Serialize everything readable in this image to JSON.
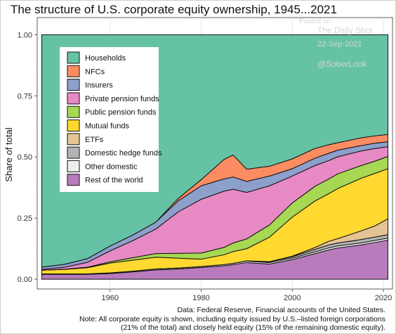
{
  "title": "The structure of U.S. corporate equity ownership, 1945...2021",
  "watermark": {
    "line1": "Posted on",
    "line2": "The Daily Shot",
    "line3": "22-Sep-2021",
    "line4": "@SoberLook"
  },
  "footer": {
    "line1": "Data: Federal Reserve, Financial accounts of the United States.",
    "line2": "Note: All corporate equity is shown, including equity issued by U.S.–listed foreign corporations",
    "line3": "(21% of the total) and closely held equity (15% of the remaining domestic equity)."
  },
  "chart_data": {
    "type": "area",
    "stacked": true,
    "title": "The structure of U.S. corporate equity ownership, 1945...2021",
    "xlabel": "",
    "ylabel": "Share of total",
    "xlim": [
      1945,
      2021
    ],
    "ylim": [
      0,
      1
    ],
    "x_ticks": [
      1960,
      1980,
      2000,
      2020
    ],
    "y_ticks": [
      0,
      0.25,
      0.5,
      0.75,
      1.0
    ],
    "y_tick_labels": [
      "0.00",
      "0.25",
      "0.50",
      "0.75",
      "1.00"
    ],
    "grid": true,
    "legend_position": "top-left inside",
    "x": [
      1945,
      1950,
      1955,
      1960,
      1965,
      1970,
      1975,
      1980,
      1985,
      1987,
      1990,
      1995,
      2000,
      2005,
      2008,
      2010,
      2015,
      2018,
      2021
    ],
    "series": [
      {
        "name": "Rest of the world",
        "color": "#b87bbc",
        "values": [
          0.02,
          0.02,
          0.02,
          0.023,
          0.03,
          0.038,
          0.042,
          0.048,
          0.055,
          0.06,
          0.068,
          0.062,
          0.08,
          0.105,
          0.12,
          0.128,
          0.14,
          0.15,
          0.16
        ]
      },
      {
        "name": "Other domestic",
        "color": "#eeeeee",
        "values": [
          0.002,
          0.002,
          0.002,
          0.003,
          0.003,
          0.004,
          0.004,
          0.004,
          0.005,
          0.005,
          0.006,
          0.006,
          0.006,
          0.007,
          0.008,
          0.008,
          0.008,
          0.008,
          0.008
        ]
      },
      {
        "name": "Domestic hedge funds",
        "color": "#b3b3b3",
        "values": [
          0.0,
          0.0,
          0.0,
          0.0,
          0.0,
          0.0,
          0.0,
          0.0,
          0.0,
          0.0,
          0.001,
          0.003,
          0.006,
          0.01,
          0.012,
          0.012,
          0.014,
          0.014,
          0.014
        ]
      },
      {
        "name": "ETFs",
        "color": "#e5c494",
        "values": [
          0.0,
          0.0,
          0.0,
          0.0,
          0.0,
          0.0,
          0.0,
          0.0,
          0.0,
          0.0,
          0.0,
          0.001,
          0.002,
          0.008,
          0.015,
          0.018,
          0.035,
          0.045,
          0.065
        ]
      },
      {
        "name": "Mutual funds",
        "color": "#ffd92f",
        "values": [
          0.015,
          0.018,
          0.025,
          0.04,
          0.045,
          0.048,
          0.04,
          0.03,
          0.04,
          0.048,
          0.05,
          0.1,
          0.16,
          0.19,
          0.195,
          0.205,
          0.215,
          0.215,
          0.205
        ]
      },
      {
        "name": "Public pension funds",
        "color": "#a6d854",
        "values": [
          0.0,
          0.001,
          0.002,
          0.005,
          0.01,
          0.015,
          0.02,
          0.025,
          0.03,
          0.035,
          0.04,
          0.05,
          0.058,
          0.06,
          0.06,
          0.06,
          0.052,
          0.05,
          0.05
        ]
      },
      {
        "name": "Private pension funds",
        "color": "#e78ac3",
        "values": [
          0.003,
          0.008,
          0.02,
          0.045,
          0.07,
          0.1,
          0.17,
          0.22,
          0.23,
          0.22,
          0.19,
          0.16,
          0.11,
          0.085,
          0.075,
          0.07,
          0.06,
          0.052,
          0.04
        ]
      },
      {
        "name": "Insurers",
        "color": "#8da0cb",
        "values": [
          0.01,
          0.012,
          0.015,
          0.02,
          0.023,
          0.028,
          0.045,
          0.055,
          0.05,
          0.05,
          0.045,
          0.04,
          0.03,
          0.03,
          0.03,
          0.027,
          0.022,
          0.022,
          0.02
        ]
      },
      {
        "name": "NFCs",
        "color": "#fc8d62",
        "values": [
          0.0,
          0.0,
          0.0,
          0.0,
          0.0,
          0.0,
          0.01,
          0.025,
          0.08,
          0.09,
          0.05,
          0.04,
          0.04,
          0.04,
          0.035,
          0.03,
          0.032,
          0.03,
          0.03
        ]
      },
      {
        "name": "Households",
        "color": "#66c2a5",
        "values": [
          0.95,
          0.939,
          0.916,
          0.864,
          0.819,
          0.767,
          0.669,
          0.593,
          0.51,
          0.492,
          0.55,
          0.538,
          0.508,
          0.465,
          0.45,
          0.442,
          0.422,
          0.414,
          0.408
        ]
      }
    ],
    "legend_order": [
      "Households",
      "NFCs",
      "Insurers",
      "Private pension funds",
      "Public pension funds",
      "Mutual funds",
      "ETFs",
      "Domestic hedge funds",
      "Other domestic",
      "Rest of the world"
    ]
  }
}
